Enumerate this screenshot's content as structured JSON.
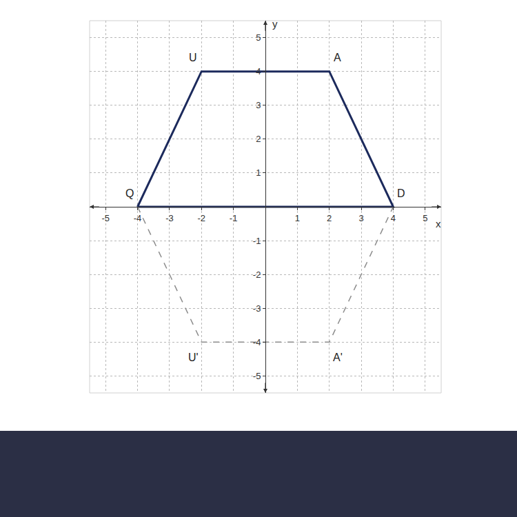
{
  "chart_data": {
    "type": "line",
    "x_label": "x",
    "y_label": "y",
    "xlim": [
      -5.5,
      5.5
    ],
    "ylim": [
      -5.5,
      5.5
    ],
    "xticks": [
      -5,
      -4,
      -3,
      -2,
      -1,
      1,
      2,
      3,
      4,
      5
    ],
    "yticks": [
      -5,
      -4,
      -3,
      -2,
      -1,
      1,
      2,
      3,
      4,
      5
    ],
    "grid": true,
    "series": [
      {
        "x": [
          -4,
          -2,
          2,
          4,
          -4
        ],
        "values": [
          0,
          4,
          4,
          0,
          0
        ],
        "color": "#1c2a5c",
        "line_style": "solid"
      },
      {
        "x": [
          -4,
          -2,
          2,
          4
        ],
        "values": [
          0,
          -4,
          -4,
          0
        ],
        "color": "#8c8c8c",
        "line_style": "dash"
      }
    ],
    "annotations": [
      {
        "text": "Q",
        "x": -4,
        "y": 0
      },
      {
        "text": "U",
        "x": -2,
        "y": 4
      },
      {
        "text": "A",
        "x": 2,
        "y": 4
      },
      {
        "text": "D",
        "x": 4,
        "y": 0
      },
      {
        "text": "U'",
        "x": -2,
        "y": -4
      },
      {
        "text": "A'",
        "x": 2,
        "y": -4
      }
    ]
  }
}
